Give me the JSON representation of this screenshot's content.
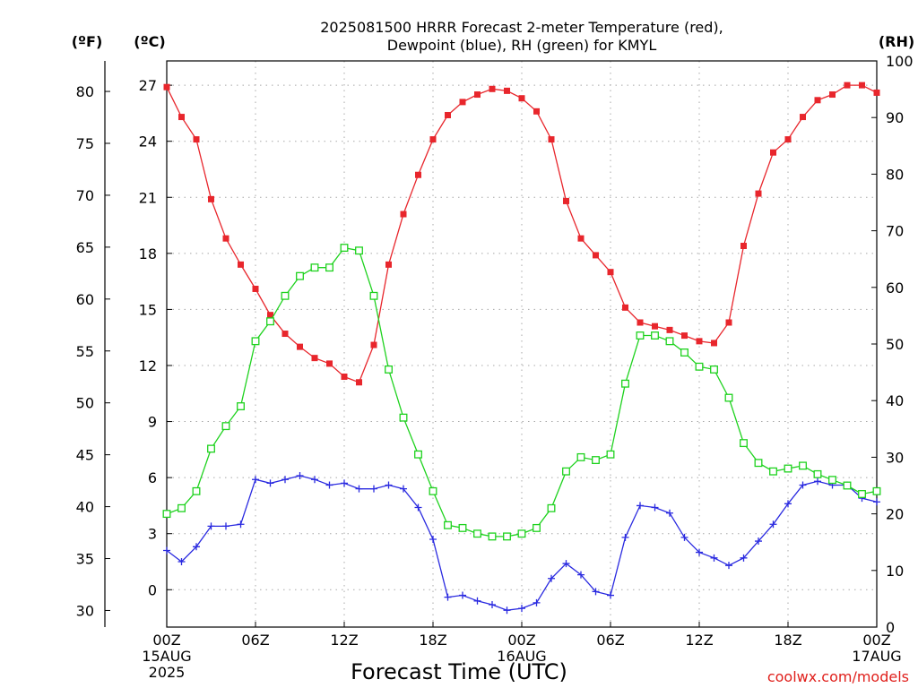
{
  "chart_data": {
    "type": "line",
    "title_lines": [
      "2025081500 HRRR Forecast 2-meter Temperature (red),",
      "Dewpoint (blue), RH (green) for KMYL"
    ],
    "xlabel": "Forecast Time (UTC)",
    "credit": "coolwx.com/models",
    "left_axes": [
      {
        "header": "(ºF)",
        "ticks": [
          "80",
          "75",
          "70",
          "65",
          "60",
          "55",
          "50",
          "45",
          "40",
          "35",
          "30"
        ],
        "tick_values": [
          80,
          75,
          70,
          65,
          60,
          55,
          50,
          45,
          40,
          35,
          30
        ]
      },
      {
        "header": "(ºC)",
        "ticks": [
          "27",
          "24",
          "21",
          "18",
          "15",
          "12",
          "9",
          "6",
          "3",
          "0"
        ],
        "tick_values": [
          27,
          24,
          21,
          18,
          15,
          12,
          9,
          6,
          3,
          0
        ]
      }
    ],
    "right_axis": {
      "header": "(RH)",
      "ticks": [
        "100",
        "90",
        "80",
        "70",
        "60",
        "50",
        "40",
        "30",
        "20",
        "10",
        "0"
      ],
      "tick_values": [
        100,
        90,
        80,
        70,
        60,
        50,
        40,
        30,
        20,
        10,
        0
      ]
    },
    "celsius_range": [
      -2,
      28.3
    ],
    "rh_range": [
      0,
      100
    ],
    "x_range_hours": [
      0,
      48
    ],
    "x_ticks": [
      {
        "hour": 0,
        "lines": [
          "00Z",
          "15AUG",
          "2025"
        ]
      },
      {
        "hour": 6,
        "lines": [
          "06Z"
        ]
      },
      {
        "hour": 12,
        "lines": [
          "12Z"
        ]
      },
      {
        "hour": 18,
        "lines": [
          "18Z"
        ]
      },
      {
        "hour": 24,
        "lines": [
          "00Z",
          "16AUG"
        ]
      },
      {
        "hour": 30,
        "lines": [
          "06Z"
        ]
      },
      {
        "hour": 36,
        "lines": [
          "12Z"
        ]
      },
      {
        "hour": 42,
        "lines": [
          "18Z"
        ]
      },
      {
        "hour": 48,
        "lines": [
          "00Z",
          "17AUG"
        ]
      }
    ],
    "grid": true,
    "series": [
      {
        "color": "#e8262c",
        "marker": "filled-square",
        "axis": "celsius",
        "values": [
          26.9,
          25.3,
          24.1,
          20.9,
          18.8,
          17.4,
          16.1,
          14.7,
          13.7,
          13.0,
          12.4,
          12.1,
          11.4,
          11.1,
          13.1,
          17.4,
          20.1,
          22.2,
          24.1,
          25.4,
          26.1,
          26.5,
          26.8,
          26.7,
          26.3,
          25.6,
          24.1,
          20.8,
          18.8,
          17.9,
          17.0,
          15.1,
          14.3,
          14.1,
          13.9,
          13.6,
          13.3,
          13.2,
          14.3,
          18.4,
          21.2,
          23.4,
          24.1,
          25.3,
          26.2,
          26.5,
          27.0,
          27.0,
          26.6
        ]
      },
      {
        "color": "#2a2ae0",
        "marker": "plus",
        "axis": "celsius",
        "values": [
          2.1,
          1.5,
          2.3,
          3.4,
          3.4,
          3.5,
          5.9,
          5.7,
          5.9,
          6.1,
          5.9,
          5.6,
          5.7,
          5.4,
          5.4,
          5.6,
          5.4,
          4.4,
          2.7,
          -0.4,
          -0.3,
          -0.6,
          -0.8,
          -1.1,
          -1.0,
          -0.7,
          0.6,
          1.4,
          0.8,
          -0.1,
          -0.3,
          2.8,
          4.5,
          4.4,
          4.1,
          2.8,
          2.0,
          1.7,
          1.3,
          1.7,
          2.6,
          3.5,
          4.6,
          5.6,
          5.8,
          5.6,
          5.6,
          4.9,
          4.7
        ]
      },
      {
        "color": "#1ed21e",
        "marker": "open-square",
        "axis": "rh",
        "values": [
          20,
          21,
          24,
          31.5,
          35.5,
          39,
          50.5,
          54,
          58.5,
          62,
          63.5,
          63.5,
          67,
          66.5,
          58.5,
          45.5,
          37,
          30.5,
          24,
          18,
          17.5,
          16.5,
          16,
          16,
          16.5,
          17.5,
          21,
          27.5,
          30,
          29.5,
          30.5,
          43,
          51.5,
          51.5,
          50.5,
          48.5,
          46,
          45.5,
          40.5,
          32.5,
          29,
          27.5,
          28,
          28.5,
          27,
          26,
          25,
          23.5,
          24
        ]
      }
    ]
  }
}
